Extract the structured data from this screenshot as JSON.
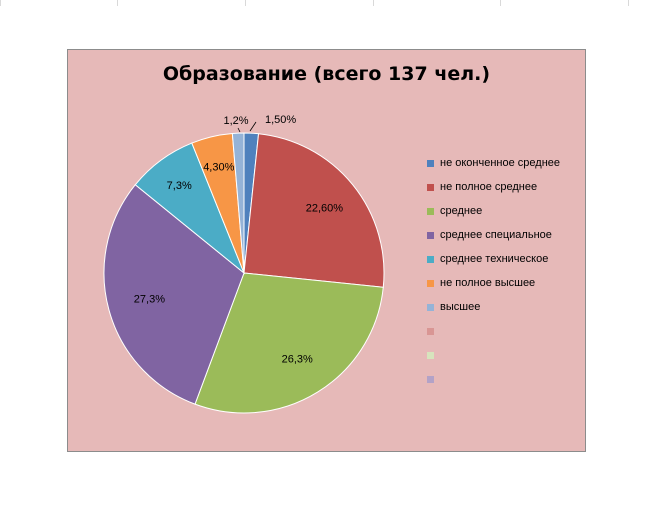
{
  "chart_data": {
    "type": "pie",
    "title": "Образование (всего 137 чел.)",
    "start_angle_deg": 0,
    "direction": "clockwise",
    "categories": [
      "не оконченное среднее",
      "не полное среднее",
      "среднее",
      "среднее специальное",
      "среднее техническое",
      "не полное высшее",
      "высшее"
    ],
    "values": [
      1.5,
      22.6,
      26.3,
      27.3,
      7.3,
      4.3,
      1.2
    ],
    "data_labels": [
      "1,50%",
      "22,60%",
      "26,3%",
      "27,3%",
      "7,3%",
      "4,30%",
      "1,2%"
    ],
    "colors": [
      "#4f81bd",
      "#c0504d",
      "#9bbb59",
      "#8064a2",
      "#4bacc6",
      "#f79646",
      "#95b3d7"
    ],
    "legend": {
      "position": "right",
      "entries": [
        {
          "label": "не оконченное среднее",
          "color": "#4f81bd"
        },
        {
          "label": "не полное среднее",
          "color": "#c0504d"
        },
        {
          "label": "среднее",
          "color": "#9bbb59"
        },
        {
          "label": "среднее специальное",
          "color": "#8064a2"
        },
        {
          "label": "среднее техническое",
          "color": "#4bacc6"
        },
        {
          "label": "не полное высшее",
          "color": "#f79646"
        },
        {
          "label": "высшее",
          "color": "#95b3d7"
        },
        {
          "label": "",
          "color": "#d99694"
        },
        {
          "label": "",
          "color": "#d7e4bd"
        },
        {
          "label": "",
          "color": "#b3a2c7"
        }
      ]
    },
    "background": "#e6b9b8"
  }
}
